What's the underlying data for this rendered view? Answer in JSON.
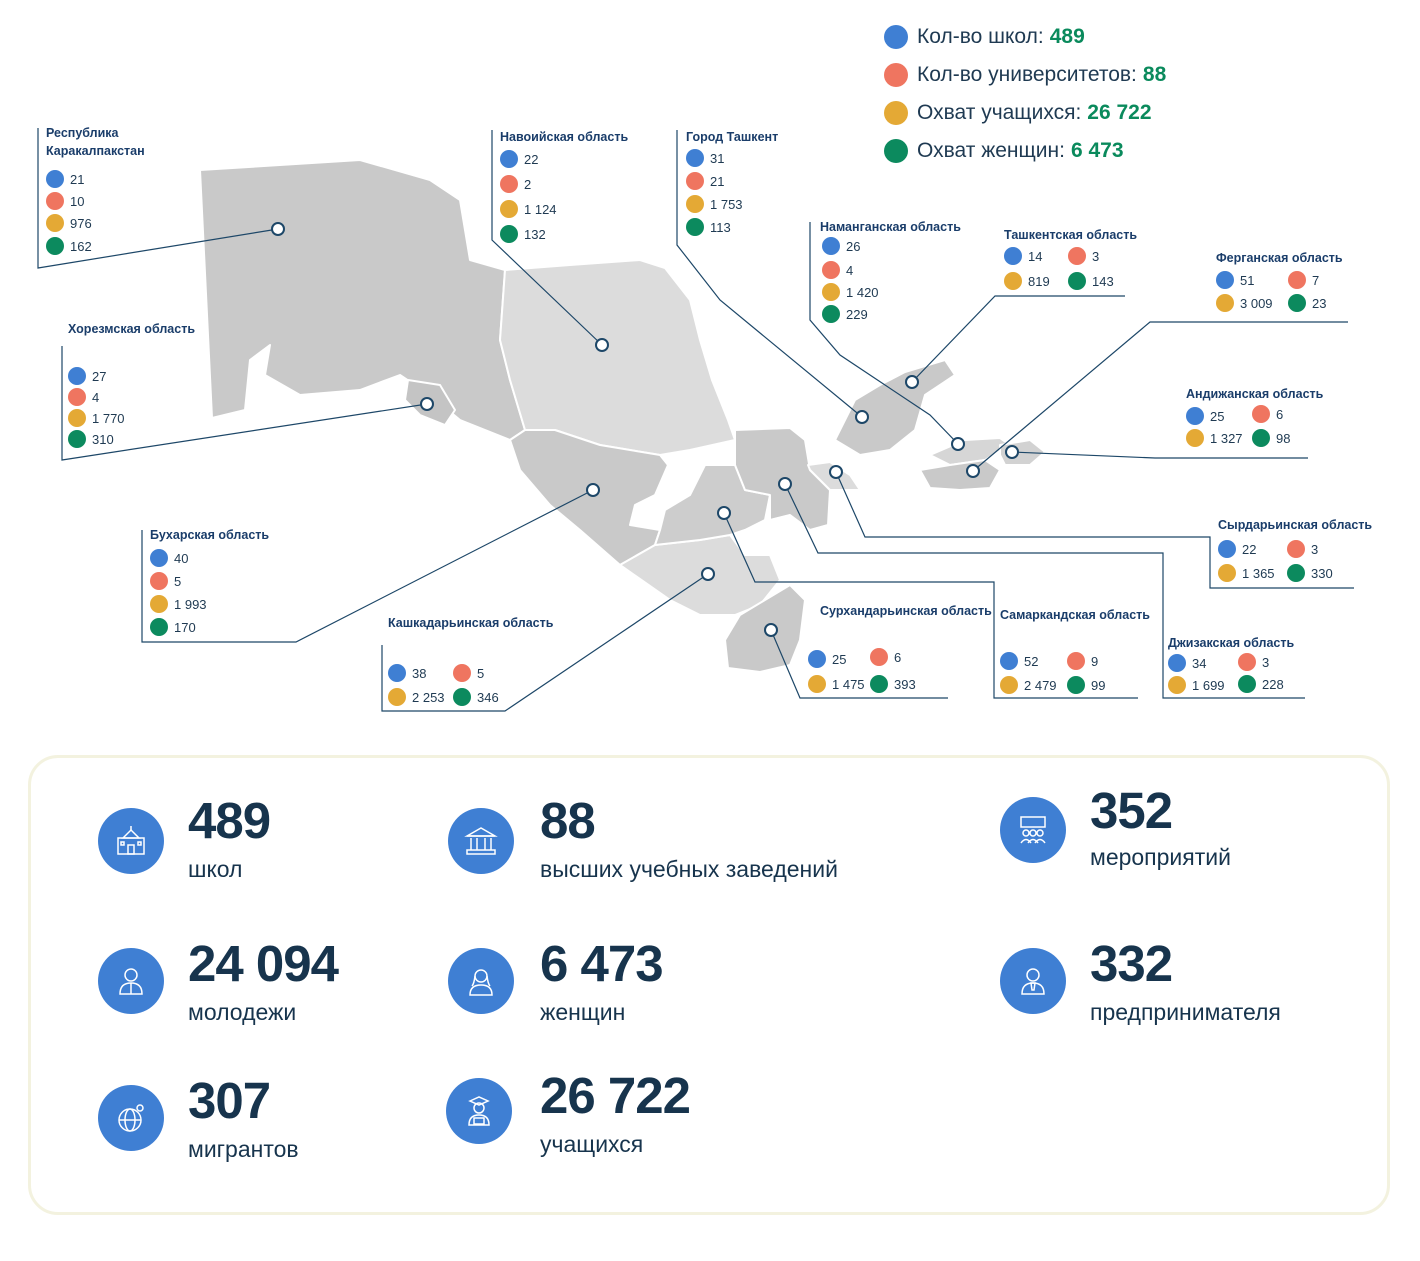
{
  "colors": {
    "schools": "#3f7fd3",
    "universities": "#ef7560",
    "students": "#e4a935",
    "women": "#0c8a5e",
    "value_green": "#0a8a5c",
    "region_title": "#1a3d6a",
    "kpi_circle": "#3f7fd3"
  },
  "legend": [
    {
      "key": "schools",
      "label": "Кол-во школ:",
      "value": "489"
    },
    {
      "key": "universities",
      "label": "Кол-во университетов:",
      "value": "88"
    },
    {
      "key": "students",
      "label": "Охват учащихся:",
      "value": "26 722"
    },
    {
      "key": "women",
      "label": "Охват женщин:",
      "value": "6 473"
    }
  ],
  "regions": [
    {
      "id": "karakalpakstan",
      "name": "Республика Каракалпакстан",
      "schools": "21",
      "universities": "10",
      "students": "976",
      "women": "162"
    },
    {
      "id": "navoi",
      "name": "Навоийская область",
      "schools": "22",
      "universities": "2",
      "students": "1 124",
      "women": "132"
    },
    {
      "id": "tashkent-city",
      "name": "Город Ташкент",
      "schools": "31",
      "universities": "21",
      "students": "1 753",
      "women": "113"
    },
    {
      "id": "namangan",
      "name": "Наманганская область",
      "schools": "26",
      "universities": "4",
      "students": "1 420",
      "women": "229"
    },
    {
      "id": "tashkent-region",
      "name": "Ташкентская область",
      "schools": "14",
      "universities": "3",
      "students": "819",
      "women": "143"
    },
    {
      "id": "fergana",
      "name": "Ферганская область",
      "schools": "51",
      "universities": "7",
      "students": "3 009",
      "women": "23"
    },
    {
      "id": "khorezm",
      "name": "Хорезмская область",
      "schools": "27",
      "universities": "4",
      "students": "1 770",
      "women": "310"
    },
    {
      "id": "andijan",
      "name": "Андижанская область",
      "schools": "25",
      "universities": "6",
      "students": "1 327",
      "women": "98"
    },
    {
      "id": "bukhara",
      "name": "Бухарская область",
      "schools": "40",
      "universities": "5",
      "students": "1 993",
      "women": "170"
    },
    {
      "id": "syrdarya",
      "name": "Сырдарьинская область",
      "schools": "22",
      "universities": "3",
      "students": "1 365",
      "women": "330"
    },
    {
      "id": "kashkadarya",
      "name": "Кашкадарьинская область",
      "schools": "38",
      "universities": "5",
      "students": "2 253",
      "women": "346"
    },
    {
      "id": "surkhandarya",
      "name": "Сурхандарьинская область",
      "schools": "25",
      "universities": "6",
      "students": "1 475",
      "women": "393"
    },
    {
      "id": "samarkand",
      "name": "Самаркандская область",
      "schools": "52",
      "universities": "9",
      "students": "2 479",
      "women": "99"
    },
    {
      "id": "jizzakh",
      "name": "Джизакская область",
      "schools": "34",
      "universities": "3",
      "students": "1 699",
      "women": "228"
    }
  ],
  "summary": [
    {
      "id": "schools",
      "icon": "school-icon",
      "value": "489",
      "label": "школ"
    },
    {
      "id": "universities",
      "icon": "university-icon",
      "value": "88",
      "label": "высших учебных заведений"
    },
    {
      "id": "events",
      "icon": "events-icon",
      "value": "352",
      "label": "мероприятий"
    },
    {
      "id": "youth",
      "icon": "youth-icon",
      "value": "24 094",
      "label": "молодежи"
    },
    {
      "id": "women",
      "icon": "woman-icon",
      "value": "6 473",
      "label": "женщин"
    },
    {
      "id": "entrepreneurs",
      "icon": "entrepreneur-icon",
      "value": "332",
      "label": "предпринимателя"
    },
    {
      "id": "migrants",
      "icon": "globe-person-icon",
      "value": "307",
      "label": "мигрантов"
    },
    {
      "id": "students",
      "icon": "student-icon",
      "value": "26 722",
      "label": "учащихся"
    }
  ]
}
